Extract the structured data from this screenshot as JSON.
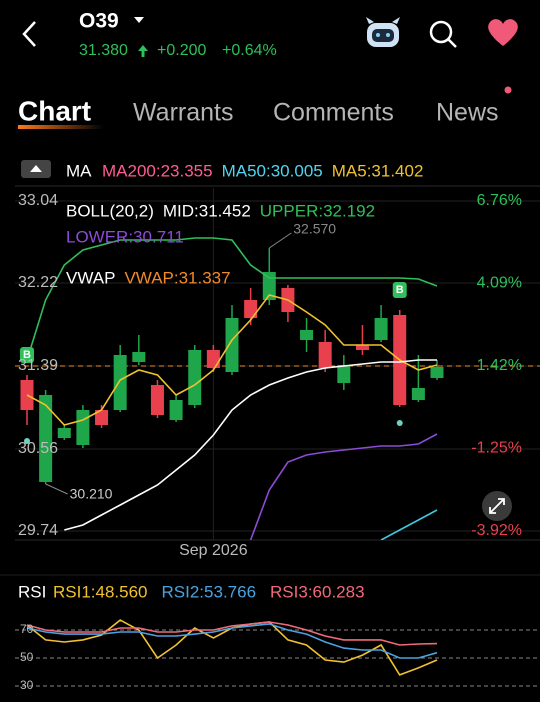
{
  "header": {
    "symbol": "O39",
    "price": "31.380",
    "change": "+0.200",
    "change_pct": "+0.64%"
  },
  "tabs": [
    "Chart",
    "Warrants",
    "Comments",
    "News"
  ],
  "chart_data": [
    {
      "type": "candlestick",
      "ma_legend": {
        "label": "MA",
        "items": [
          {
            "text": "MA200:23.355",
            "color": "#ff5c93"
          },
          {
            "text": "MA50:30.005",
            "color": "#4fd6ee"
          },
          {
            "text": "MA5:31.402",
            "color": "#f2c12e"
          }
        ]
      },
      "boll_legend": [
        {
          "text": "BOLL(20,2)",
          "color": "#ffffff"
        },
        {
          "text": "MID:31.452",
          "color": "#ffffff"
        },
        {
          "text": "UPPER:32.192",
          "color": "#2fbf5b"
        }
      ],
      "boll_lower": {
        "text": "LOWER:30.711",
        "color": "#8e4bd6"
      },
      "vwap_legend": [
        {
          "text": "VWAP",
          "color": "#ffffff"
        },
        {
          "text": "VWAP:31.337",
          "color": "#f08a2a"
        }
      ],
      "categories": [
        null,
        null,
        null,
        null,
        null,
        null,
        null,
        null,
        null,
        null,
        "Sep 2026",
        null,
        null,
        null,
        null,
        null,
        null,
        null,
        null,
        null,
        null,
        null,
        null
      ],
      "open": [
        31.25,
        30.23,
        30.67,
        30.6,
        30.95,
        30.95,
        31.43,
        31.2,
        30.85,
        31.0,
        31.55,
        31.33,
        32.05,
        32.05,
        32.17,
        31.65,
        31.63,
        31.22,
        31.6,
        31.65,
        31.9,
        31.05,
        31.27
      ],
      "high": [
        31.3,
        31.15,
        30.8,
        31.0,
        31.0,
        31.6,
        31.7,
        31.25,
        31.1,
        31.6,
        31.6,
        32.0,
        32.17,
        32.57,
        32.2,
        31.87,
        31.75,
        31.5,
        31.8,
        32.0,
        31.95,
        31.5,
        31.45
      ],
      "low": [
        30.8,
        30.21,
        30.65,
        30.57,
        30.77,
        30.93,
        31.4,
        30.87,
        30.83,
        30.97,
        31.33,
        31.3,
        31.8,
        32.0,
        31.83,
        31.53,
        31.33,
        31.15,
        31.5,
        31.63,
        30.98,
        31.03,
        31.25
      ],
      "close": [
        30.95,
        31.1,
        30.77,
        30.95,
        30.8,
        31.5,
        31.53,
        30.9,
        31.05,
        31.55,
        31.37,
        31.87,
        31.87,
        32.33,
        31.93,
        31.75,
        31.37,
        31.4,
        31.55,
        31.87,
        31.0,
        31.17,
        31.38
      ],
      "up_color": "#1fa64a",
      "down_color": "#e8414d",
      "lines": [
        {
          "color": "#2fbf5b",
          "values": [
            31.45,
            32.05,
            32.4,
            32.55,
            32.6,
            32.65,
            32.65,
            32.65,
            32.65,
            32.67,
            32.67,
            32.65,
            32.4,
            32.27,
            32.27,
            32.27,
            32.27,
            32.27,
            32.27,
            32.27,
            32.27,
            32.26,
            32.19
          ]
        },
        {
          "color": "#f2c12e",
          "values": [
            31.1,
            31.0,
            30.8,
            30.85,
            30.95,
            31.25,
            31.35,
            31.3,
            31.1,
            31.2,
            31.35,
            31.65,
            31.85,
            32.1,
            32.05,
            31.93,
            31.8,
            31.6,
            31.6,
            31.6,
            31.45,
            31.35,
            31.4
          ]
        },
        {
          "color": "#ffffff",
          "values": [
            null,
            null,
            29.75,
            29.8,
            29.9,
            30.0,
            30.1,
            30.2,
            30.35,
            30.5,
            30.7,
            30.95,
            31.1,
            31.2,
            31.27,
            31.33,
            31.37,
            31.39,
            31.41,
            31.43,
            31.43,
            31.45,
            31.45
          ]
        },
        {
          "color": "#8e4bd6",
          "values": [
            null,
            null,
            null,
            null,
            null,
            null,
            null,
            null,
            null,
            null,
            null,
            null,
            29.65,
            30.15,
            30.43,
            30.5,
            30.53,
            30.55,
            30.57,
            30.59,
            30.59,
            30.61,
            30.71
          ]
        },
        {
          "color": "#3fc8e0",
          "values": [
            null,
            null,
            null,
            null,
            null,
            null,
            null,
            null,
            null,
            null,
            null,
            null,
            null,
            null,
            null,
            null,
            null,
            null,
            null,
            29.65,
            29.75,
            29.85,
            29.95
          ]
        }
      ],
      "high_label": {
        "value": 32.57,
        "label": "32.570"
      },
      "low_label": {
        "value": 30.21,
        "label": "30.210"
      },
      "trade_markers": [
        "B",
        "B"
      ],
      "ylim": [
        29.74,
        33.04
      ],
      "yticks": [
        {
          "value": 29.74,
          "label": "29.74"
        },
        {
          "value": 30.56,
          "label": "30.56"
        },
        {
          "value": 31.39,
          "label": "31.39"
        },
        {
          "value": 32.22,
          "label": "32.22"
        },
        {
          "value": 33.04,
          "label": "33.04"
        }
      ],
      "y2lim": [
        -3.92,
        6.76
      ],
      "y2ticks": [
        {
          "value": -3.92,
          "label": "-3.92%"
        },
        {
          "value": -1.25,
          "label": "-1.25%"
        },
        {
          "value": 1.42,
          "label": "1.42%"
        },
        {
          "value": 4.09,
          "label": "4.09%"
        },
        {
          "value": 6.76,
          "label": "6.76%"
        }
      ],
      "grid": true
    },
    {
      "type": "line",
      "title": "RSI",
      "series": [
        {
          "name": "RSI1:48.560",
          "color": "#f2c12e",
          "values": [
            73.6,
            62.9,
            61.4,
            62.9,
            66.4,
            77.1,
            70,
            50,
            59.3,
            71.4,
            64.3,
            71.4,
            74.3,
            75.7,
            62.9,
            59.3,
            48.6,
            47.1,
            52.1,
            59.3,
            37.9,
            42.9,
            48.6
          ]
        },
        {
          "name": "RSI2:53.766",
          "color": "#4aa3e0",
          "values": [
            71.4,
            68.6,
            67.1,
            67.1,
            67.1,
            68.6,
            68.6,
            65.7,
            65.7,
            67.1,
            68.6,
            71.4,
            72.9,
            74.3,
            70,
            67.1,
            61.4,
            57.1,
            55.7,
            55.7,
            50,
            50,
            53.8
          ]
        },
        {
          "name": "RSI3:60.283",
          "color": "#f06b7a",
          "values": [
            73.6,
            70,
            68.6,
            68.6,
            68.6,
            71.4,
            71.4,
            68.6,
            68.6,
            70,
            70,
            72.9,
            74.3,
            75.7,
            73.6,
            70,
            65.7,
            62.9,
            62.9,
            62.9,
            59.3,
            60,
            60.3
          ]
        }
      ],
      "ylim": [
        30,
        70
      ],
      "yticks": [
        30,
        50,
        70
      ],
      "grid": true
    }
  ]
}
